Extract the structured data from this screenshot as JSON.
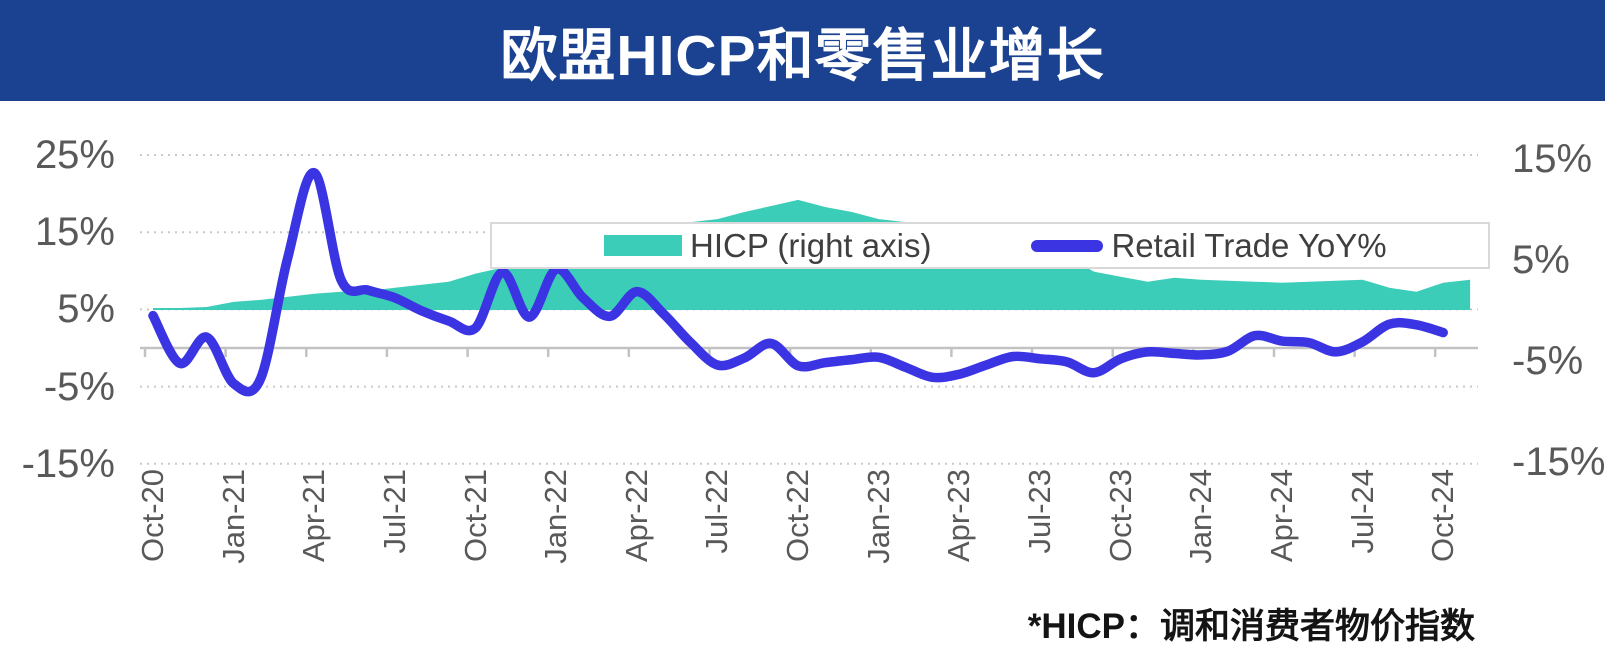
{
  "header": {
    "title": "欧盟HICP和零售业增长",
    "bg_color": "#1A4291",
    "text_color": "#FFFFFF"
  },
  "legend": {
    "hicp_label": "HICP (right axis)",
    "retail_label": "Retail Trade YoY%"
  },
  "footnote": {
    "text": "*HICP：调和消费者物价指数"
  },
  "colors": {
    "area_teal": "#3CCDB8",
    "line_blue": "#3B34E3",
    "gridline": "#C9C9C9",
    "zero_axis": "#C2C2C2",
    "axis_text": "#595959"
  },
  "chart_data": {
    "type": "line",
    "subtype": "dual-axis combo: area (HICP, right axis) + smooth line (Retail Trade YoY%, left axis)",
    "x_monthly_from": "Oct-20",
    "x_tick_labels": [
      "Oct-20",
      "Jan-21",
      "Apr-21",
      "Jul-21",
      "Oct-21",
      "Jan-22",
      "Apr-22",
      "Jul-22",
      "Oct-22",
      "Jan-23",
      "Apr-23",
      "Jul-23",
      "Oct-23",
      "Jan-24",
      "Apr-24",
      "Jul-24",
      "Oct-24"
    ],
    "left_axis": {
      "tick_labels": [
        "25%",
        "15%",
        "5%",
        "-5%",
        "-15%"
      ],
      "tick_values": [
        25,
        15,
        5,
        -5,
        -15
      ],
      "range_hint": [
        -20,
        30
      ]
    },
    "right_axis": {
      "tick_labels": [
        "15%",
        "5%",
        "-5%",
        "-15%"
      ],
      "tick_values": [
        15,
        5,
        -5,
        -15
      ],
      "range_hint": [
        -20,
        20
      ]
    },
    "grid": "dotted horizontal gridlines, solid zero baseline with quarterly tick marks",
    "legend_position": "top center, boxed",
    "series": [
      {
        "name": "HICP (right axis)",
        "type": "area",
        "axis": "right",
        "color": "#3CCDB8",
        "values": [
          0.2,
          0.2,
          0.3,
          0.8,
          1.0,
          1.3,
          1.6,
          1.8,
          1.9,
          2.2,
          2.5,
          2.8,
          3.6,
          4.2,
          4.6,
          5.4,
          5.9,
          6.5,
          7.7,
          8.2,
          8.7,
          9.0,
          9.7,
          10.3,
          10.9,
          10.2,
          9.7,
          9.0,
          8.7,
          7.1,
          7.0,
          6.4,
          6.2,
          5.9,
          5.4,
          3.8,
          3.3,
          2.8,
          3.2,
          3.0,
          2.9,
          2.8,
          2.7,
          2.8,
          2.9,
          3.0,
          2.2,
          1.8,
          2.7,
          3.0
        ]
      },
      {
        "name": "Retail Trade YoY%",
        "type": "line",
        "axis": "left",
        "color": "#3B34E3",
        "values": [
          4.2,
          -2.0,
          1.4,
          -4.6,
          -4.0,
          11.5,
          22.7,
          8.8,
          7.5,
          6.5,
          4.8,
          3.5,
          2.6,
          9.8,
          4.0,
          10.2,
          6.5,
          4.1,
          7.3,
          4.4,
          0.7,
          -2.2,
          -1.3,
          0.6,
          -2.3,
          -1.9,
          -1.5,
          -1.2,
          -2.5,
          -3.8,
          -3.4,
          -2.2,
          -1.1,
          -1.4,
          -1.8,
          -3.2,
          -1.4,
          -0.5,
          -0.7,
          -0.9,
          -0.4,
          1.6,
          0.9,
          0.7,
          -0.5,
          0.8,
          3.1,
          3.0,
          2.0
        ]
      }
    ]
  }
}
